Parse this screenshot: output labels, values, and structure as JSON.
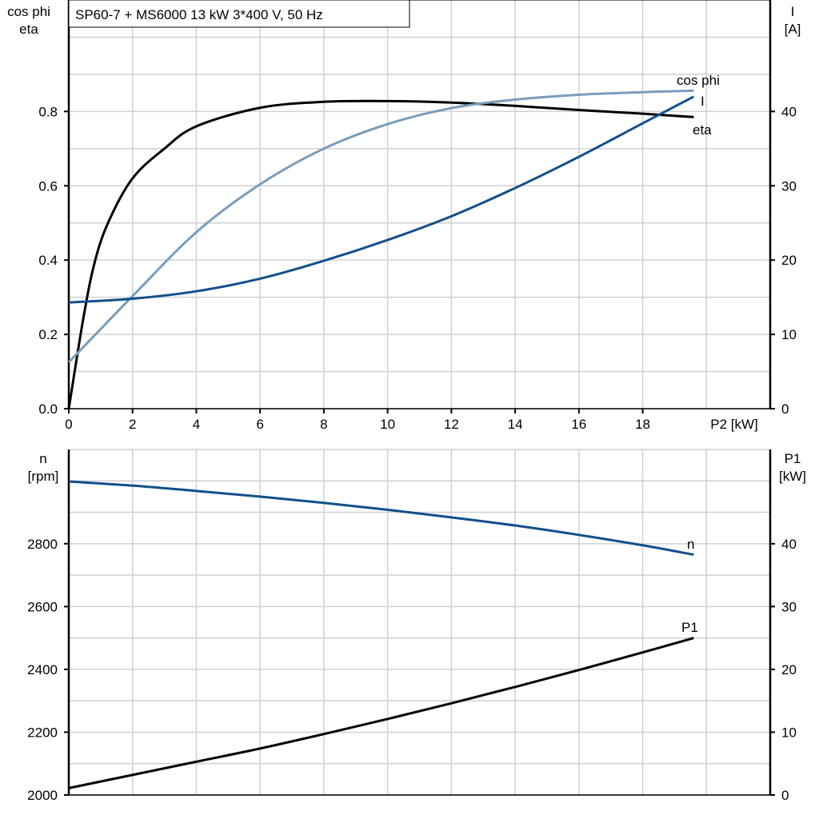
{
  "chart_data": [
    {
      "type": "line",
      "title": "SP60-7 + MS6000   13 kW   3*400 V, 50 Hz",
      "xlabel": "P2 [kW]",
      "ylabel_left": [
        "cos phi",
        "eta"
      ],
      "ylabel_right": [
        "I",
        "[A]"
      ],
      "xlim": [
        0,
        22
      ],
      "ylim_left": [
        0,
        1.1
      ],
      "ylim_right": [
        0,
        55
      ],
      "x_ticks": [
        "0",
        "2",
        "4",
        "6",
        "8",
        "10",
        "12",
        "14",
        "16",
        "18"
      ],
      "y_ticks_left": [
        "0.0",
        "0.2",
        "0.4",
        "0.6",
        "0.8"
      ],
      "y_ticks_right": [
        "0",
        "10",
        "20",
        "30",
        "40"
      ],
      "grid": true,
      "series": [
        {
          "name": "eta",
          "axis": "left",
          "color": "#000000",
          "x": [
            0,
            0.45,
            0.8,
            1.23,
            2,
            3,
            4,
            6,
            8,
            10,
            12,
            14,
            16,
            18,
            19.6
          ],
          "y": [
            0,
            0.24,
            0.39,
            0.5,
            0.62,
            0.7,
            0.76,
            0.81,
            0.826,
            0.828,
            0.824,
            0.815,
            0.804,
            0.794,
            0.785
          ]
        },
        {
          "name": "cos phi",
          "axis": "left",
          "color": "#7a9cbd",
          "x": [
            0,
            2,
            4,
            6,
            8,
            10,
            12,
            14,
            16,
            18,
            19.6
          ],
          "y": [
            0.125,
            0.303,
            0.475,
            0.604,
            0.7,
            0.766,
            0.809,
            0.832,
            0.845,
            0.852,
            0.856
          ]
        },
        {
          "name": "I",
          "axis": "right",
          "color": "#11508a",
          "x": [
            0,
            2,
            4,
            6,
            8,
            10,
            12,
            14,
            16,
            18,
            19.6
          ],
          "y": [
            14.3,
            14.8,
            15.8,
            17.5,
            19.9,
            22.7,
            25.9,
            29.7,
            33.9,
            38.4,
            42
          ]
        }
      ]
    },
    {
      "type": "line",
      "xlim": [
        0,
        22
      ],
      "ylabel_left": [
        "n",
        "[rpm]"
      ],
      "ylabel_right": [
        "P1",
        "[kW]"
      ],
      "ylim_left": [
        2000,
        3100
      ],
      "ylim_right": [
        0,
        55
      ],
      "y_ticks_left": [
        "2000",
        "2200",
        "2400",
        "2600",
        "2800"
      ],
      "y_ticks_right": [
        "0",
        "10",
        "20",
        "30",
        "40"
      ],
      "grid": true,
      "series": [
        {
          "name": "n",
          "axis": "left",
          "color": "#11508a",
          "x": [
            0,
            2,
            4,
            6,
            8,
            10,
            12,
            14,
            16,
            18,
            19.6
          ],
          "y": [
            2998,
            2985,
            2968,
            2950,
            2930,
            2908,
            2884,
            2858,
            2828,
            2795,
            2765
          ]
        },
        {
          "name": "P1",
          "axis": "right",
          "color": "#000000",
          "x": [
            0,
            2,
            4,
            6,
            8,
            10,
            12,
            14,
            16,
            18,
            19.6
          ],
          "y": [
            1.1,
            3.2,
            5.3,
            7.4,
            9.7,
            12.1,
            14.6,
            17.2,
            19.9,
            22.7,
            25
          ]
        }
      ]
    }
  ]
}
